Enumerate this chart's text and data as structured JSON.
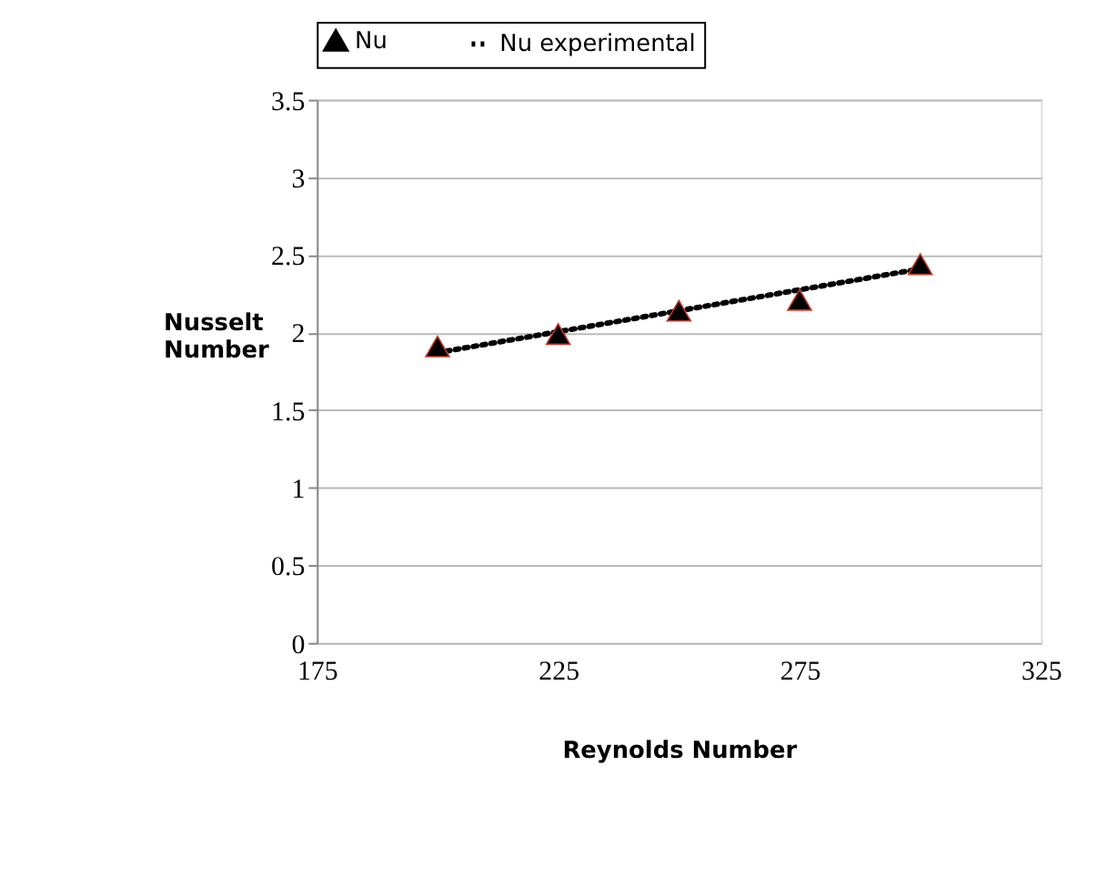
{
  "chart_data": {
    "type": "scatter",
    "xlabel": "Reynolds Number",
    "ylabel": "Nusselt Number",
    "xlim": [
      175,
      325
    ],
    "xticks": [
      175,
      225,
      275,
      325
    ],
    "ylim": [
      0,
      3.5
    ],
    "yticks": [
      0,
      0.5,
      1,
      1.5,
      2,
      2.5,
      3,
      3.5
    ],
    "grid": "y",
    "legend": "top",
    "series": [
      {
        "name": "Nu",
        "marker": "triangle",
        "color": "#000000",
        "x": [
          200,
          225,
          250,
          275,
          300
        ],
        "values": [
          1.91,
          1.99,
          2.14,
          2.21,
          2.44
        ]
      },
      {
        "name": "Nu experimental",
        "type": "line",
        "line_style": "dotted",
        "marker": "none",
        "color": "#000000",
        "x": [
          200,
          300
        ],
        "values": [
          1.87,
          2.41
        ]
      }
    ]
  }
}
